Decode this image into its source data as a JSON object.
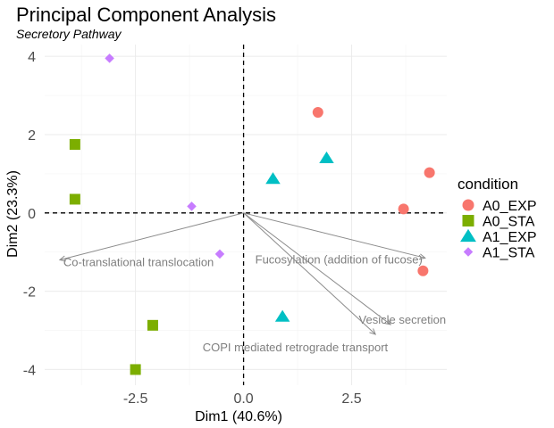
{
  "chart_data": {
    "type": "scatter",
    "title": "Principal Component Analysis",
    "subtitle": "Secretory Pathway",
    "xlabel": "Dim1 (40.6%)",
    "ylabel": "Dim2 (23.3%)",
    "xlim": [
      -4.6,
      4.7
    ],
    "ylim": [
      -4.4,
      4.3
    ],
    "xticks": [
      -2.5,
      0.0,
      2.5
    ],
    "yticks": [
      -4,
      -2,
      0,
      2,
      4
    ],
    "grid": true,
    "legend": {
      "title": "condition",
      "position": "right"
    },
    "series": [
      {
        "name": "A0_EXP",
        "color": "#F8766D",
        "shape": "circle",
        "points": [
          {
            "x": 1.72,
            "y": 2.57
          },
          {
            "x": 4.3,
            "y": 1.03
          },
          {
            "x": 3.7,
            "y": 0.1
          },
          {
            "x": 4.15,
            "y": -1.48
          }
        ]
      },
      {
        "name": "A0_STA",
        "color": "#7CAE00",
        "shape": "square",
        "points": [
          {
            "x": -3.9,
            "y": 1.75
          },
          {
            "x": -3.9,
            "y": 0.35
          },
          {
            "x": -2.1,
            "y": -2.87
          },
          {
            "x": -2.5,
            "y": -4.0
          }
        ]
      },
      {
        "name": "A1_EXP",
        "color": "#00BFC4",
        "shape": "triangle",
        "points": [
          {
            "x": 1.92,
            "y": 1.4
          },
          {
            "x": 0.68,
            "y": 0.87
          },
          {
            "x": 0.9,
            "y": -2.65
          }
        ]
      },
      {
        "name": "A1_STA",
        "color": "#C77CFF",
        "shape": "diamond",
        "points": [
          {
            "x": -3.1,
            "y": 3.95
          },
          {
            "x": -1.2,
            "y": 0.17
          },
          {
            "x": -0.55,
            "y": -1.05
          }
        ]
      }
    ],
    "loadings": [
      {
        "label": "Co-translational translocation",
        "x": -4.25,
        "y": -1.2
      },
      {
        "label": "Fucosylation (addition of fucose)",
        "x": 4.2,
        "y": -1.15
      },
      {
        "label": "Vesicle secretion",
        "x": 3.4,
        "y": -2.85
      },
      {
        "label": "COPI mediated retrograde transport",
        "x": 3.05,
        "y": -3.1
      }
    ]
  }
}
